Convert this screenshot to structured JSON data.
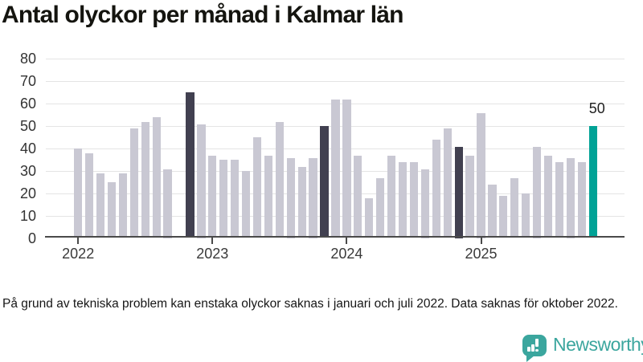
{
  "title": "Antal olyckor per månad i Kalmar län",
  "footnote": "På grund av tekniska problem kan enstaka olyckor saknas i januari och juli 2022. Data saknas för oktober 2022.",
  "branding": {
    "name": "Newsworthy",
    "icon": "newsworthy-chart-bubble-icon"
  },
  "colors": {
    "bar_default": "#c9c8d3",
    "bar_reference": "#414050",
    "bar_current": "#00a296",
    "axis": "#4a4a4a",
    "gridline": "#e4e4e4",
    "brand_teal": "#3BA69E"
  },
  "chart_data": {
    "type": "bar",
    "title": "Antal olyckor per månad i Kalmar län",
    "xlabel": "",
    "ylabel": "",
    "ylim": [
      0,
      80
    ],
    "yticks": [
      0,
      10,
      20,
      30,
      40,
      50,
      60,
      70,
      80
    ],
    "xticks": [
      "2022",
      "2023",
      "2024",
      "2025"
    ],
    "grid": true,
    "legend": "none",
    "annotation": {
      "label": "50",
      "applies_to": "nov 2025"
    },
    "bars": [
      {
        "label": "jan 2022",
        "value": 40,
        "state": "normal"
      },
      {
        "label": "feb 2022",
        "value": 38,
        "state": "normal"
      },
      {
        "label": "mar 2022",
        "value": 29,
        "state": "normal"
      },
      {
        "label": "apr 2022",
        "value": 25,
        "state": "normal"
      },
      {
        "label": "maj 2022",
        "value": 29,
        "state": "normal"
      },
      {
        "label": "jun 2022",
        "value": 49,
        "state": "normal"
      },
      {
        "label": "jul 2022",
        "value": 52,
        "state": "normal"
      },
      {
        "label": "aug 2022",
        "value": 54,
        "state": "normal"
      },
      {
        "label": "sep 2022",
        "value": 31,
        "state": "normal"
      },
      {
        "label": "okt 2022",
        "value": null,
        "state": "missing"
      },
      {
        "label": "nov 2022",
        "value": 65,
        "state": "reference"
      },
      {
        "label": "dec 2022",
        "value": 51,
        "state": "normal"
      },
      {
        "label": "jan 2023",
        "value": 37,
        "state": "normal"
      },
      {
        "label": "feb 2023",
        "value": 35,
        "state": "normal"
      },
      {
        "label": "mar 2023",
        "value": 35,
        "state": "normal"
      },
      {
        "label": "apr 2023",
        "value": 30,
        "state": "normal"
      },
      {
        "label": "maj 2023",
        "value": 45,
        "state": "normal"
      },
      {
        "label": "jun 2023",
        "value": 37,
        "state": "normal"
      },
      {
        "label": "jul 2023",
        "value": 52,
        "state": "normal"
      },
      {
        "label": "aug 2023",
        "value": 36,
        "state": "normal"
      },
      {
        "label": "sep 2023",
        "value": 32,
        "state": "normal"
      },
      {
        "label": "okt 2023",
        "value": 36,
        "state": "normal"
      },
      {
        "label": "nov 2023",
        "value": 50,
        "state": "reference"
      },
      {
        "label": "dec 2023",
        "value": 62,
        "state": "normal"
      },
      {
        "label": "jan 2024",
        "value": 62,
        "state": "normal"
      },
      {
        "label": "feb 2024",
        "value": 37,
        "state": "normal"
      },
      {
        "label": "mar 2024",
        "value": 18,
        "state": "normal"
      },
      {
        "label": "apr 2024",
        "value": 27,
        "state": "normal"
      },
      {
        "label": "maj 2024",
        "value": 37,
        "state": "normal"
      },
      {
        "label": "jun 2024",
        "value": 34,
        "state": "normal"
      },
      {
        "label": "jul 2024",
        "value": 34,
        "state": "normal"
      },
      {
        "label": "aug 2024",
        "value": 31,
        "state": "normal"
      },
      {
        "label": "sep 2024",
        "value": 44,
        "state": "normal"
      },
      {
        "label": "okt 2024",
        "value": 49,
        "state": "normal"
      },
      {
        "label": "nov 2024",
        "value": 41,
        "state": "reference"
      },
      {
        "label": "dec 2024",
        "value": 37,
        "state": "normal"
      },
      {
        "label": "jan 2025",
        "value": 56,
        "state": "normal"
      },
      {
        "label": "feb 2025",
        "value": 24,
        "state": "normal"
      },
      {
        "label": "mar 2025",
        "value": 19,
        "state": "normal"
      },
      {
        "label": "apr 2025",
        "value": 27,
        "state": "normal"
      },
      {
        "label": "maj 2025",
        "value": 20,
        "state": "normal"
      },
      {
        "label": "jun 2025",
        "value": 41,
        "state": "normal"
      },
      {
        "label": "jul 2025",
        "value": 37,
        "state": "normal"
      },
      {
        "label": "aug 2025",
        "value": 34,
        "state": "normal"
      },
      {
        "label": "sep 2025",
        "value": 36,
        "state": "normal"
      },
      {
        "label": "okt 2025",
        "value": 34,
        "state": "normal"
      },
      {
        "label": "nov 2025",
        "value": 50,
        "state": "current"
      }
    ]
  }
}
